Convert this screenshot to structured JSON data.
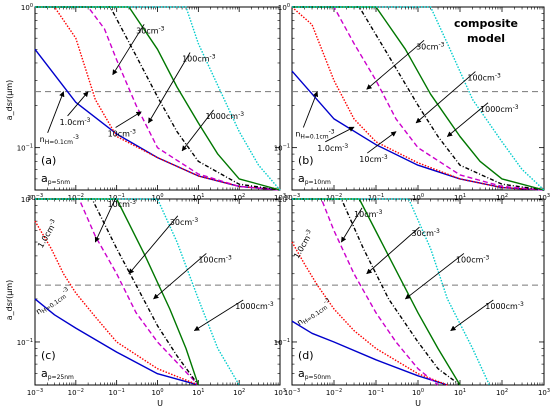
{
  "figure": {
    "y_axis_label": "a_dsr(μm)",
    "x_axis_label": "U",
    "composite_label": [
      "composite",
      "model"
    ]
  },
  "colors": {
    "0.1": "#0000cc",
    "1.0": "#ff0000",
    "10": "#cc00cc",
    "30": "#000000",
    "100": "#007700",
    "1000": "#00cccc",
    "threshold": "#777777"
  },
  "chart_data": [
    {
      "type": "line",
      "panel": "a",
      "panel_label": "(a)",
      "ap_label": "a_p=5nm",
      "xscale": "log",
      "yscale": "log",
      "xlim": [
        0.001,
        1000
      ],
      "ylim": [
        0.05,
        1.0
      ],
      "threshold": 0.25,
      "series": [
        {
          "name": "nH=0.1cm-3",
          "key": "0.1",
          "style": "solid",
          "x": [
            0.001,
            0.01,
            0.1,
            1,
            10,
            100,
            1000
          ],
          "y": [
            0.5,
            0.21,
            0.125,
            0.085,
            0.063,
            0.053,
            0.05
          ]
        },
        {
          "name": "1.0cm-3",
          "key": "1.0",
          "style": "dotted",
          "x": [
            0.001,
            0.003,
            0.01,
            0.03,
            0.1,
            1,
            10,
            100,
            1000
          ],
          "y": [
            1.0,
            1.0,
            0.6,
            0.22,
            0.12,
            0.085,
            0.063,
            0.053,
            0.05
          ]
        },
        {
          "name": "10cm-3",
          "key": "10",
          "style": "dashed",
          "x": [
            0.001,
            0.02,
            0.05,
            0.1,
            0.3,
            1,
            10,
            100,
            1000
          ],
          "y": [
            1.0,
            1.0,
            0.7,
            0.42,
            0.2,
            0.1,
            0.065,
            0.053,
            0.05
          ]
        },
        {
          "name": "30cm-3",
          "key": "30",
          "style": "dashdot",
          "x": [
            0.001,
            0.07,
            0.3,
            1,
            3,
            10,
            100,
            1000
          ],
          "y": [
            1.0,
            1.0,
            0.45,
            0.23,
            0.13,
            0.08,
            0.055,
            0.05
          ]
        },
        {
          "name": "100cm-3",
          "key": "100",
          "style": "solid",
          "x": [
            0.001,
            0.2,
            1,
            3,
            10,
            30,
            100,
            1000
          ],
          "y": [
            1.0,
            1.0,
            0.5,
            0.27,
            0.15,
            0.09,
            0.06,
            0.05
          ]
        },
        {
          "name": "1000cm-3",
          "key": "1000",
          "style": "dotted",
          "x": [
            0.001,
            5,
            10,
            100,
            300,
            1000
          ],
          "y": [
            1.0,
            1.0,
            0.55,
            0.13,
            0.075,
            0.05
          ]
        }
      ],
      "labels": [
        {
          "text": "n_H=0.1cm^-3",
          "tx": 0.0013,
          "ty": 0.11,
          "ax": 0.005,
          "ay": 0.25
        },
        {
          "text": "1.0cm^-3",
          "tx": 0.004,
          "ty": 0.145,
          "ax": 0.02,
          "ay": 0.25
        },
        {
          "text": "10cm^-3",
          "tx": 0.06,
          "ty": 0.12,
          "ax": 0.4,
          "ay": 0.18
        },
        {
          "text": "30cm^-3",
          "tx": 0.3,
          "ty": 0.65,
          "ax": 0.08,
          "ay": 0.33
        },
        {
          "text": "100cm^-3",
          "tx": 4,
          "ty": 0.41,
          "ax": 0.6,
          "ay": 0.15
        },
        {
          "text": "1000cm^-3",
          "tx": 15,
          "ty": 0.16,
          "ax": 4,
          "ay": 0.095
        }
      ]
    },
    {
      "type": "line",
      "panel": "b",
      "panel_label": "(b)",
      "ap_label": "a_p=10nm",
      "xscale": "log",
      "yscale": "log",
      "xlim": [
        0.001,
        1000
      ],
      "ylim": [
        0.05,
        1.0
      ],
      "threshold": 0.25,
      "series": [
        {
          "name": "nH=0.1cm-3",
          "key": "0.1",
          "style": "solid",
          "x": [
            0.001,
            0.01,
            0.1,
            1,
            10,
            100,
            1000
          ],
          "y": [
            0.35,
            0.16,
            0.105,
            0.075,
            0.06,
            0.052,
            0.05
          ]
        },
        {
          "name": "1.0cm-3",
          "key": "1.0",
          "style": "dotted",
          "x": [
            0.001,
            0.003,
            0.01,
            0.03,
            0.1,
            1,
            10,
            100,
            1000
          ],
          "y": [
            1.0,
            0.75,
            0.3,
            0.16,
            0.11,
            0.078,
            0.06,
            0.052,
            0.05
          ]
        },
        {
          "name": "10cm-3",
          "key": "10",
          "style": "dashed",
          "x": [
            0.001,
            0.01,
            0.03,
            0.1,
            0.3,
            1,
            10,
            100,
            1000
          ],
          "y": [
            1.0,
            1.0,
            0.55,
            0.3,
            0.16,
            0.1,
            0.064,
            0.053,
            0.05
          ]
        },
        {
          "name": "30cm-3",
          "key": "30",
          "style": "dashdot",
          "x": [
            0.001,
            0.04,
            0.2,
            1,
            3,
            10,
            100,
            1000
          ],
          "y": [
            1.0,
            1.0,
            0.45,
            0.2,
            0.12,
            0.075,
            0.055,
            0.05
          ]
        },
        {
          "name": "100cm-3",
          "key": "100",
          "style": "solid",
          "x": [
            0.001,
            0.1,
            0.5,
            2,
            10,
            30,
            100,
            1000
          ],
          "y": [
            1.0,
            1.0,
            0.5,
            0.24,
            0.12,
            0.08,
            0.06,
            0.05
          ]
        },
        {
          "name": "1000cm-3",
          "key": "1000",
          "style": "dotted",
          "x": [
            0.001,
            2,
            5,
            20,
            100,
            300,
            1000
          ],
          "y": [
            1.0,
            1.0,
            0.55,
            0.22,
            0.11,
            0.07,
            0.05
          ]
        }
      ],
      "labels": [
        {
          "text": "n_H=0.1cm^-3",
          "tx": 0.0012,
          "ty": 0.12,
          "ax": 0.004,
          "ay": 0.25
        },
        {
          "text": "1.0cm^-3",
          "tx": 0.004,
          "ty": 0.095,
          "ax": 0.03,
          "ay": 0.14
        },
        {
          "text": "10cm^-3",
          "tx": 0.04,
          "ty": 0.079,
          "ax": 0.3,
          "ay": 0.13
        },
        {
          "text": "30cm^-3",
          "tx": 0.9,
          "ty": 0.5,
          "ax": 0.06,
          "ay": 0.26
        },
        {
          "text": "100cm^-3",
          "tx": 15,
          "ty": 0.3,
          "ax": 0.9,
          "ay": 0.15
        },
        {
          "text": "1000cm^-3",
          "tx": 30,
          "ty": 0.18,
          "ax": 5,
          "ay": 0.12
        }
      ]
    },
    {
      "type": "line",
      "panel": "c",
      "panel_label": "(c)",
      "ap_label": "a_p=25nm",
      "xscale": "log",
      "yscale": "log",
      "xlim": [
        0.001,
        1000
      ],
      "ylim": [
        0.05,
        1.0
      ],
      "threshold": 0.25,
      "series": [
        {
          "name": "nH=0.1cm-3",
          "key": "0.1",
          "style": "solid",
          "x": [
            0.001,
            0.003,
            0.01,
            0.1,
            1,
            10
          ],
          "y": [
            0.2,
            0.155,
            0.125,
            0.085,
            0.06,
            0.05
          ]
        },
        {
          "name": "1.0cm-3",
          "key": "1.0",
          "style": "dotted",
          "x": [
            0.001,
            0.0025,
            0.005,
            0.01,
            0.03,
            0.1,
            1,
            10
          ],
          "y": [
            0.7,
            0.45,
            0.3,
            0.22,
            0.15,
            0.1,
            0.065,
            0.05
          ]
        },
        {
          "name": "10cm-3",
          "key": "10",
          "style": "dashed",
          "x": [
            0.001,
            0.012,
            0.03,
            0.1,
            0.3,
            1,
            10
          ],
          "y": [
            1.0,
            1.0,
            0.55,
            0.3,
            0.16,
            0.1,
            0.05
          ]
        },
        {
          "name": "30cm-3",
          "key": "30",
          "style": "dashdot",
          "x": [
            0.001,
            0.025,
            0.1,
            0.3,
            1,
            3,
            10
          ],
          "y": [
            1.0,
            1.0,
            0.45,
            0.25,
            0.13,
            0.08,
            0.05
          ]
        },
        {
          "name": "100cm-3",
          "key": "100",
          "style": "solid",
          "x": [
            0.001,
            0.1,
            0.5,
            2,
            5,
            10
          ],
          "y": [
            1.0,
            1.0,
            0.4,
            0.17,
            0.09,
            0.05
          ]
        },
        {
          "name": "1000cm-3",
          "key": "1000",
          "style": "dotted",
          "x": [
            0.001,
            1,
            3,
            10,
            30,
            100
          ],
          "y": [
            1.0,
            1.0,
            0.5,
            0.2,
            0.09,
            0.05
          ]
        }
      ],
      "labels": [
        {
          "text": "n_H=0.1cm^-3",
          "tx": 0.0012,
          "ty": 0.155,
          "ax": 0.01,
          "ay": 0.125,
          "rot": 35
        },
        {
          "text": "1.0cm^-3",
          "tx": 0.0015,
          "ty": 0.45,
          "ax": 0.004,
          "ay": 0.4,
          "rot": 60
        },
        {
          "text": "10cm^-3",
          "tx": 0.06,
          "ty": 0.88,
          "ax": 0.03,
          "ay": 0.5
        },
        {
          "text": "30cm^-3",
          "tx": 2,
          "ty": 0.66,
          "ax": 0.2,
          "ay": 0.3
        },
        {
          "text": "100cm^-3",
          "tx": 10,
          "ty": 0.36,
          "ax": 0.8,
          "ay": 0.2
        },
        {
          "text": "1000cm^-3",
          "tx": 80,
          "ty": 0.17,
          "ax": 8,
          "ay": 0.12
        }
      ]
    },
    {
      "type": "line",
      "panel": "d",
      "panel_label": "(d)",
      "ap_label": "a_p=50nm",
      "xscale": "log",
      "yscale": "log",
      "xlim": [
        0.001,
        1000
      ],
      "ylim": [
        0.05,
        1.0
      ],
      "threshold": 0.25,
      "series": [
        {
          "name": "nH=0.1cm-3",
          "key": "0.1",
          "style": "solid",
          "x": [
            0.001,
            0.003,
            0.01,
            0.1,
            1,
            5
          ],
          "y": [
            0.14,
            0.115,
            0.1,
            0.075,
            0.058,
            0.05
          ]
        },
        {
          "name": "1.0cm-3",
          "key": "1.0",
          "style": "dotted",
          "x": [
            0.001,
            0.002,
            0.004,
            0.01,
            0.03,
            0.1,
            1,
            5
          ],
          "y": [
            0.5,
            0.35,
            0.25,
            0.17,
            0.12,
            0.09,
            0.06,
            0.05
          ]
        },
        {
          "name": "10cm-3",
          "key": "10",
          "style": "dashed",
          "x": [
            0.001,
            0.005,
            0.01,
            0.03,
            0.1,
            0.3,
            1,
            3
          ],
          "y": [
            1.0,
            1.0,
            0.6,
            0.3,
            0.16,
            0.1,
            0.065,
            0.05
          ]
        },
        {
          "name": "30cm-3",
          "key": "30",
          "style": "dashdot",
          "x": [
            0.001,
            0.015,
            0.05,
            0.2,
            1,
            3,
            10
          ],
          "y": [
            1.0,
            1.0,
            0.45,
            0.2,
            0.1,
            0.065,
            0.05
          ]
        },
        {
          "name": "100cm-3",
          "key": "100",
          "style": "solid",
          "x": [
            0.001,
            0.04,
            0.2,
            1,
            3,
            10
          ],
          "y": [
            1.0,
            1.0,
            0.4,
            0.16,
            0.09,
            0.05
          ]
        },
        {
          "name": "1000cm-3",
          "key": "1000",
          "style": "dotted",
          "x": [
            0.001,
            0.6,
            2,
            5,
            20,
            50
          ],
          "y": [
            1.0,
            1.0,
            0.45,
            0.2,
            0.09,
            0.05
          ]
        }
      ],
      "labels": [
        {
          "text": "n_H=0.1cm^-3",
          "tx": 0.0015,
          "ty": 0.13,
          "ax": 0.006,
          "ay": 0.105,
          "rot": 35
        },
        {
          "text": "1.0cm^-3",
          "tx": 0.0014,
          "ty": 0.38,
          "ax": 0.0035,
          "ay": 0.28,
          "rot": 60
        },
        {
          "text": "10cm^-3",
          "tx": 0.03,
          "ty": 0.75,
          "ax": 0.015,
          "ay": 0.5
        },
        {
          "text": "30cm^-3",
          "tx": 0.7,
          "ty": 0.55,
          "ax": 0.06,
          "ay": 0.3
        },
        {
          "text": "100cm^-3",
          "tx": 8,
          "ty": 0.36,
          "ax": 0.5,
          "ay": 0.2
        },
        {
          "text": "1000cm^-3",
          "tx": 40,
          "ty": 0.17,
          "ax": 6,
          "ay": 0.12
        }
      ]
    }
  ]
}
